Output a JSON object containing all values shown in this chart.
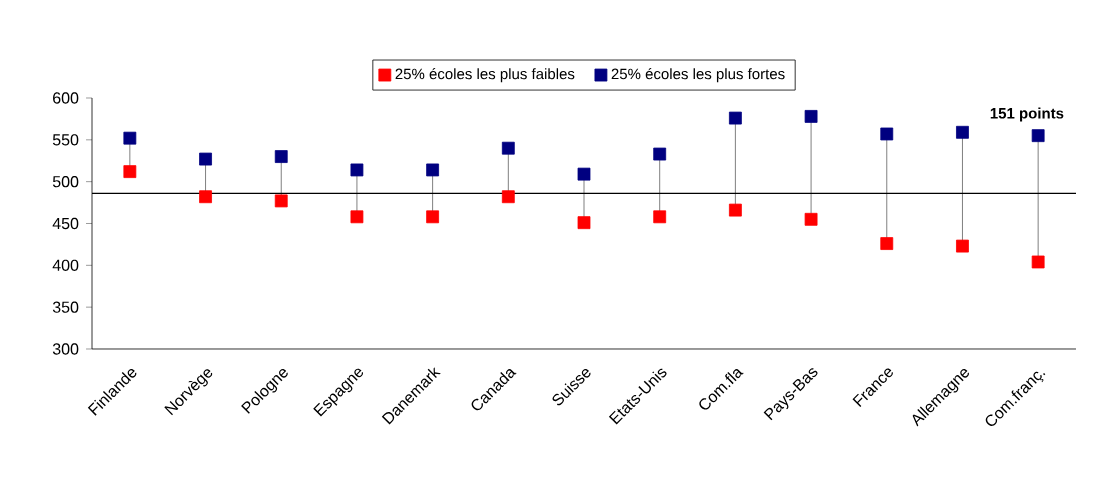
{
  "chart_data": {
    "type": "scatter",
    "categories": [
      "Finlande",
      "Norvège",
      "Pologne",
      "Espagne",
      "Danemark",
      "Canada",
      "Suisse",
      "Etats-Unis",
      "Com.fla",
      "Pays-Bas",
      "France",
      "Allemagne",
      "Com.franç."
    ],
    "series": [
      {
        "name": "25% écoles les plus faibles",
        "color": "#ff0000",
        "values": [
          512,
          482,
          477,
          458,
          458,
          482,
          451,
          458,
          466,
          455,
          426,
          423,
          404
        ]
      },
      {
        "name": "25% écoles les plus fortes",
        "color": "#000080",
        "values": [
          552,
          527,
          530,
          514,
          514,
          540,
          509,
          533,
          576,
          578,
          557,
          559,
          555
        ]
      }
    ],
    "ylim": [
      300,
      600
    ],
    "yticks": [
      300,
      350,
      400,
      450,
      500,
      550,
      600
    ],
    "ref_lines": [
      {
        "axis": "y",
        "value": 486,
        "color": "#000000"
      }
    ],
    "annotations": [
      "151 points"
    ],
    "marker": "square",
    "legend": "top",
    "grid": false
  }
}
